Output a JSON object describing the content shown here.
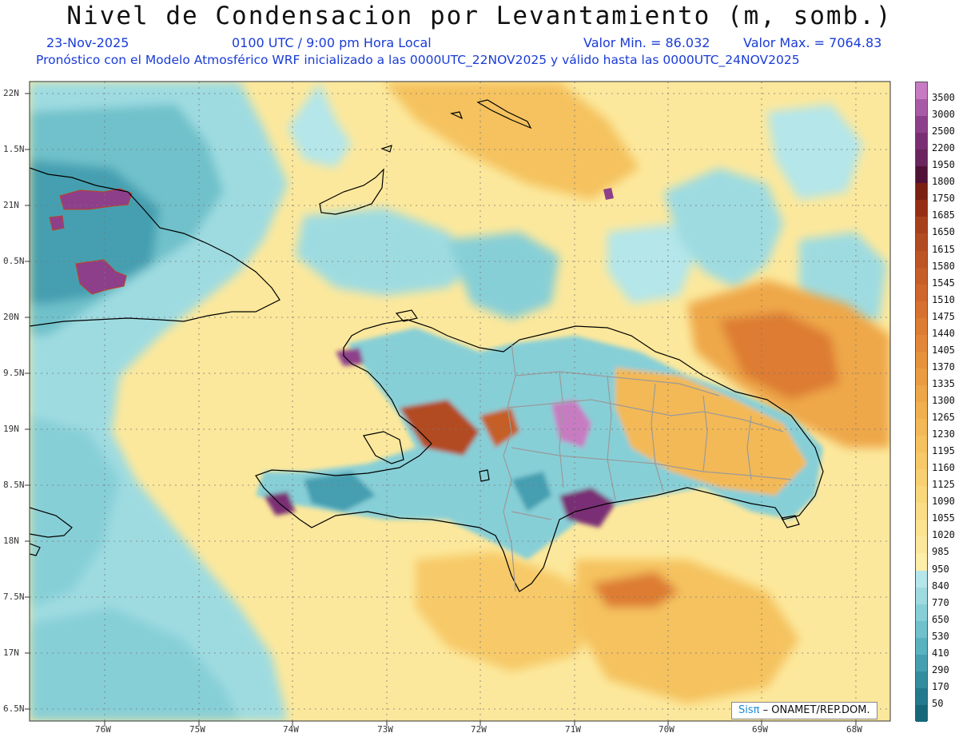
{
  "title": "Nivel de Condensacion por Levantamiento (m, somb.)",
  "subheader": {
    "date": "23-Nov-2025",
    "time": "0100 UTC / 9:00 pm Hora Local",
    "min": "Valor Min. = 86.032",
    "max": "Valor Max. = 7064.83"
  },
  "subtitle2": "Pronóstico con el Modelo Atmosférico WRF inicializado a las 0000UTC_22NOV2025 y válido hasta las  0000UTC_24NOV2025",
  "lat_labels": [
    "22N",
    "1.5N",
    "21N",
    "0.5N",
    "20N",
    "9.5N",
    "19N",
    "8.5N",
    "18N",
    "7.5N",
    "17N",
    "6.5N"
  ],
  "lon_labels": [
    "76W",
    "75W",
    "74W",
    "73W",
    "72W",
    "71W",
    "70W",
    "69W",
    "68W"
  ],
  "colorbar": {
    "labels": [
      "3500",
      "3000",
      "2500",
      "2200",
      "1950",
      "1800",
      "1750",
      "1685",
      "1650",
      "1615",
      "1580",
      "1545",
      "1510",
      "1475",
      "1440",
      "1405",
      "1370",
      "1335",
      "1300",
      "1265",
      "1230",
      "1195",
      "1160",
      "1125",
      "1090",
      "1055",
      "1020",
      "985",
      "950",
      "840",
      "770",
      "650",
      "530",
      "410",
      "290",
      "170",
      "50"
    ],
    "colors": [
      "#c77bc2",
      "#a95aa6",
      "#8e3f8a",
      "#7a2f74",
      "#6a245e",
      "#4f1236",
      "#7a2010",
      "#962d14",
      "#a8401c",
      "#b34b20",
      "#bd5424",
      "#c65e28",
      "#cf672c",
      "#d7712f",
      "#dd7c33",
      "#e28737",
      "#e6923c",
      "#ea9c42",
      "#eea748",
      "#f1b04f",
      "#f3b957",
      "#f5c25f",
      "#f7c968",
      "#f8d071",
      "#f9d77b",
      "#fadd86",
      "#fbe391",
      "#fce89c",
      "#fdeea8",
      "#b4e6ea",
      "#9edbe1",
      "#87cfd7",
      "#70c1cb",
      "#5ab2bf",
      "#459fb0",
      "#348d9f",
      "#247a8d",
      "#17677b"
    ]
  },
  "credit": {
    "logo": "Sisπ",
    "text": "– ONAMET/REP.DOM."
  },
  "colors": {
    "header_blue": "#1a3cd6",
    "title": "#111111",
    "coast": "#000000",
    "borders": "#9a9a9a"
  }
}
